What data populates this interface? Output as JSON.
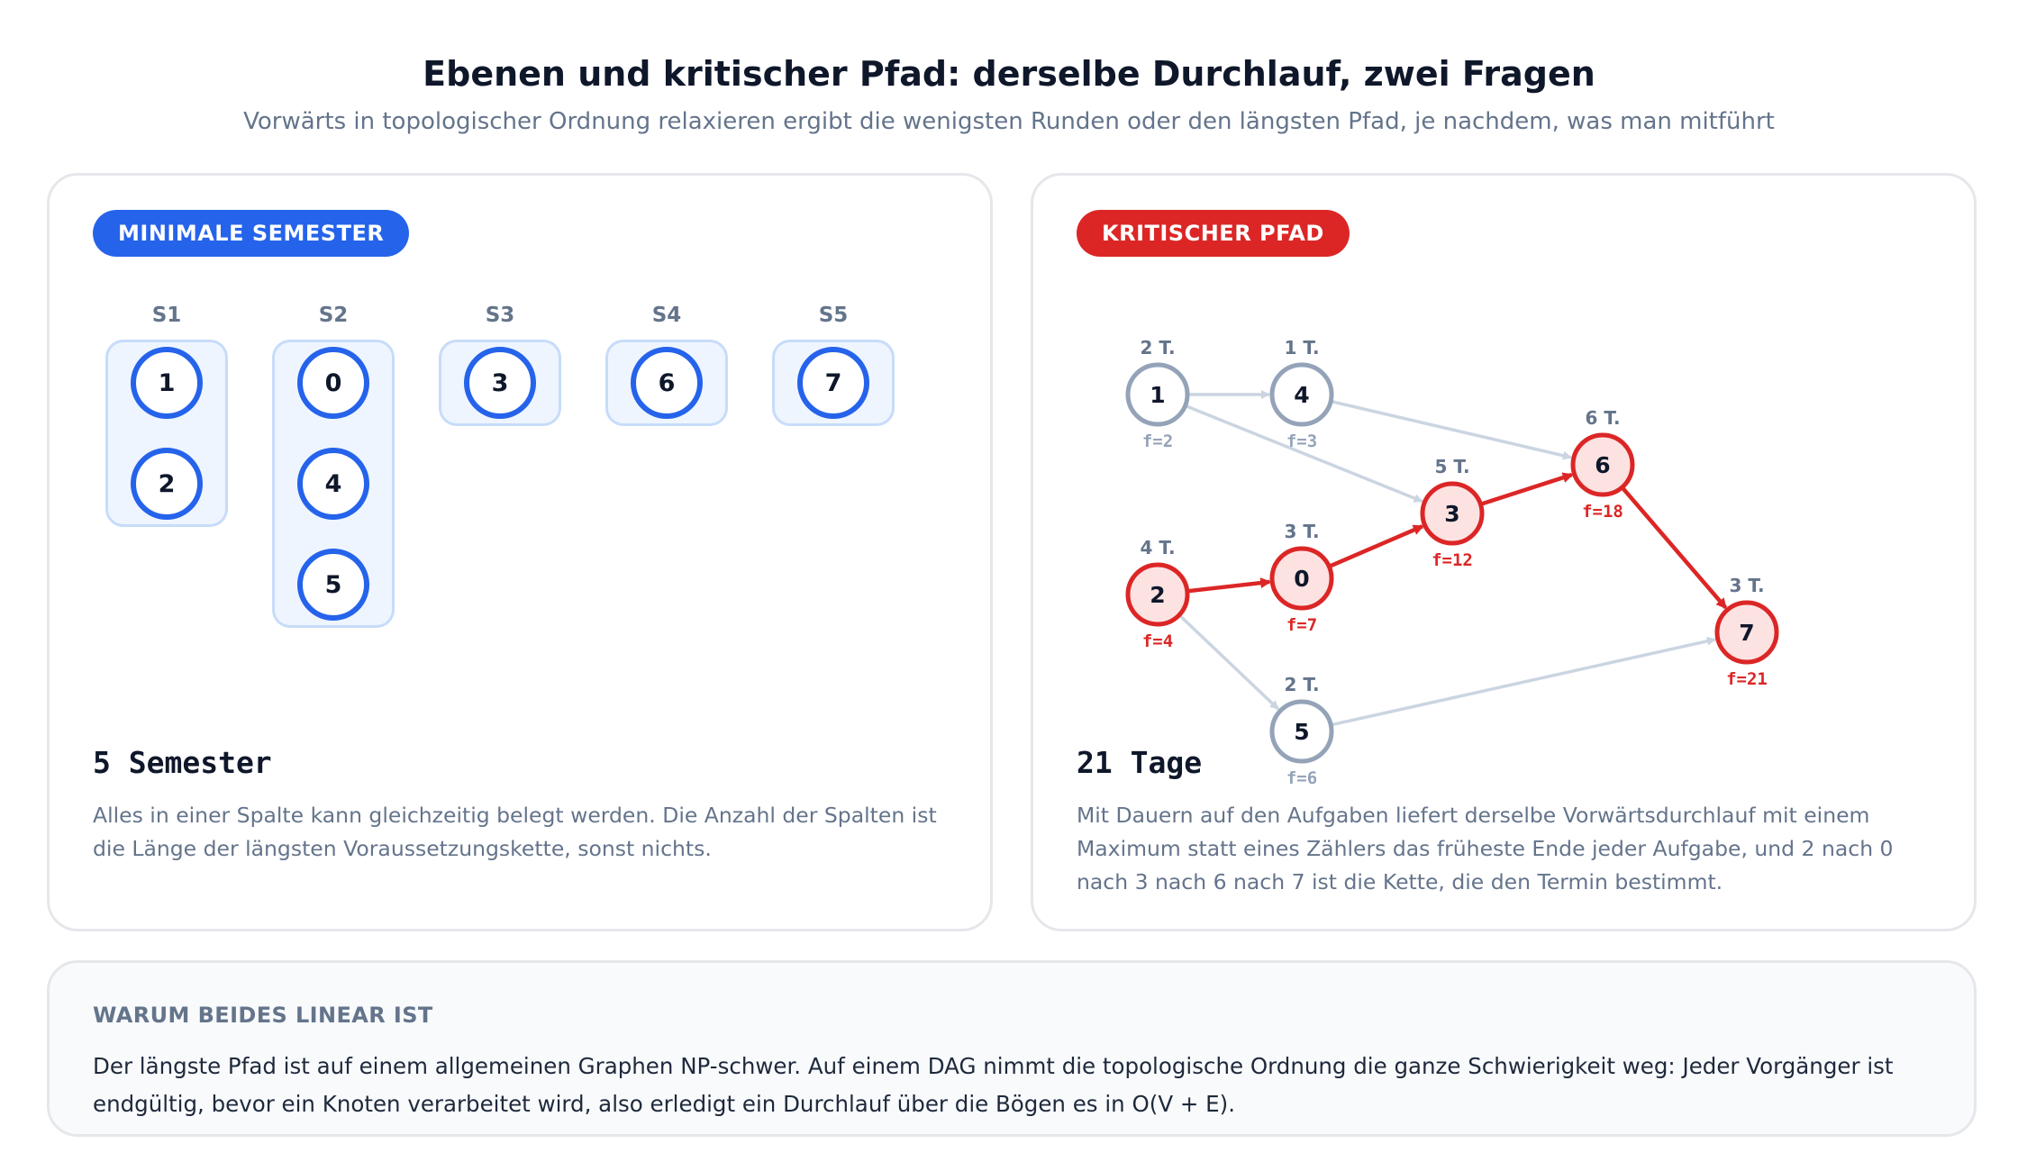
{
  "header": {
    "title": "Ebenen und kritischer Pfad: derselbe Durchlauf, zwei Fragen",
    "subtitle": "Vorwärts in topologischer Ordnung relaxieren ergibt die wenigsten Runden oder den längsten Pfad, je nachdem, was man mitführt"
  },
  "left": {
    "badge": "MINIMALE SEMESTER",
    "semesters": [
      {
        "label": "S1",
        "nodes": [
          "1",
          "2"
        ]
      },
      {
        "label": "S2",
        "nodes": [
          "0",
          "4",
          "5"
        ]
      },
      {
        "label": "S3",
        "nodes": [
          "3"
        ]
      },
      {
        "label": "S4",
        "nodes": [
          "6"
        ]
      },
      {
        "label": "S5",
        "nodes": [
          "7"
        ]
      }
    ],
    "result": "5 Semester",
    "description": "Alles in einer Spalte kann gleichzeitig belegt werden. Die Anzahl der Spalten ist die Länge der längsten Voraussetzungskette, sonst nichts."
  },
  "right": {
    "badge": "KRITISCHER PFAD",
    "nodes": [
      {
        "id": "1",
        "duration": "2 T.",
        "finish": "f=2",
        "critical": false
      },
      {
        "id": "4",
        "duration": "1 T.",
        "finish": "f=3",
        "critical": false
      },
      {
        "id": "6",
        "duration": "6 T.",
        "finish": "f=18",
        "critical": true
      },
      {
        "id": "3",
        "duration": "5 T.",
        "finish": "f=12",
        "critical": true
      },
      {
        "id": "2",
        "duration": "4 T.",
        "finish": "f=4",
        "critical": true
      },
      {
        "id": "0",
        "duration": "3 T.",
        "finish": "f=7",
        "critical": true
      },
      {
        "id": "7",
        "duration": "3 T.",
        "finish": "f=21",
        "critical": true
      },
      {
        "id": "5",
        "duration": "2 T.",
        "finish": "f=6",
        "critical": false
      }
    ],
    "edges": [
      {
        "from": "1",
        "to": "4",
        "critical": false
      },
      {
        "from": "1",
        "to": "3",
        "critical": false
      },
      {
        "from": "4",
        "to": "6",
        "critical": false
      },
      {
        "from": "2",
        "to": "0",
        "critical": true
      },
      {
        "from": "0",
        "to": "3",
        "critical": true
      },
      {
        "from": "3",
        "to": "6",
        "critical": true
      },
      {
        "from": "6",
        "to": "7",
        "critical": true
      },
      {
        "from": "2",
        "to": "5",
        "critical": false
      },
      {
        "from": "5",
        "to": "7",
        "critical": false
      }
    ],
    "result": "21 Tage",
    "description": "Mit Dauern auf den Aufgaben liefert derselbe Vorwärtsdurchlauf mit einem Maximum statt eines Zählers das früheste Ende jeder Aufgabe, und 2 nach 0 nach 3 nach 6 nach 7 ist die Kette, die den Termin bestimmt."
  },
  "bottom": {
    "heading": "WARUM BEIDES LINEAR IST",
    "text": "Der längste Pfad ist auf einem allgemeinen Graphen NP-schwer. Auf einem DAG nimmt die topologische Ordnung die ganze Schwierigkeit weg: Jeder Vorgänger ist endgültig, bevor ein Knoten verarbeitet wird, also erledigt ein Durchlauf über die Bögen es in O(V + E)."
  },
  "colors": {
    "accent_blue": "#2563eb",
    "critical_red": "#dc2626",
    "critical_fill": "#fde2e2",
    "normal_node": "#94a3b8",
    "normal_edge": "#cbd5e1",
    "muted_text": "#64748b"
  }
}
